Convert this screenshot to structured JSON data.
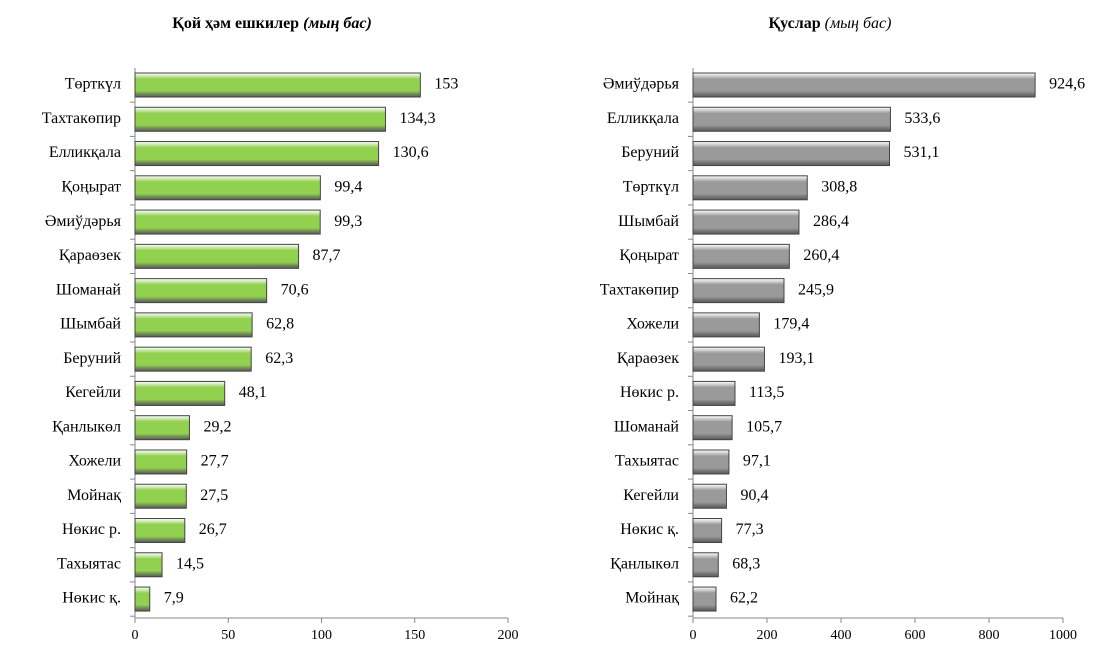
{
  "chart_data": [
    {
      "type": "bar",
      "orientation": "horizontal",
      "title": "Қой ҳәм ешкилер",
      "subtitle": "(мың бас)",
      "categories": [
        "Төрткүл",
        "Тахтакөпир",
        "Елликқала",
        "Қоңырат",
        "Әмиўдәрья",
        "Қараөзек",
        "Шоманай",
        "Шымбай",
        "Беруний",
        "Кегейли",
        "Қанлыкөл",
        "Хожели",
        "Мойнақ",
        "Нөкис р.",
        "Тахыятас",
        "Нөкис қ."
      ],
      "values": [
        153,
        134.3,
        130.6,
        99.4,
        99.3,
        87.7,
        70.6,
        62.8,
        62.3,
        48.1,
        29.2,
        27.7,
        27.5,
        26.7,
        14.5,
        7.9
      ],
      "value_labels": [
        "153",
        "134,3",
        "130,6",
        "99,4",
        "99,3",
        "87,7",
        "70,6",
        "62,8",
        "62,3",
        "48,1",
        "29,2",
        "27,7",
        "27,5",
        "26,7",
        "14,5",
        "7,9"
      ],
      "xlim": [
        0,
        200
      ],
      "xticks": [
        0,
        50,
        100,
        150,
        200
      ],
      "color": "#92d050"
    },
    {
      "type": "bar",
      "orientation": "horizontal",
      "title": "Қуслар",
      "subtitle": "(мың бас)",
      "categories": [
        "Әмиўдәрья",
        "Елликқала",
        "Беруний",
        "Төрткүл",
        "Шымбай",
        "Қоңырат",
        "Тахтакөпир",
        "Хожели",
        "Қараөзек",
        "Нөкис р.",
        "Шоманай",
        "Тахыятас",
        "Кегейли",
        "Нөкис қ.",
        "Қанлыкөл",
        "Мойнақ"
      ],
      "values": [
        924.6,
        533.6,
        531.1,
        308.8,
        286.4,
        260.4,
        245.9,
        179.4,
        193.1,
        113.5,
        105.7,
        97.1,
        90.4,
        77.3,
        68.3,
        62.2
      ],
      "value_labels": [
        "924,6",
        "533,6",
        "531,1",
        "308,8",
        "286,4",
        "260,4",
        "245,9",
        "179,4",
        "193,1",
        "113,5",
        "105,7",
        "97,1",
        "90,4",
        "77,3",
        "68,3",
        "62,2"
      ],
      "xlim": [
        0,
        1000
      ],
      "xticks": [
        0,
        200,
        400,
        600,
        800,
        1000
      ],
      "color": "#9a9a9a"
    }
  ]
}
